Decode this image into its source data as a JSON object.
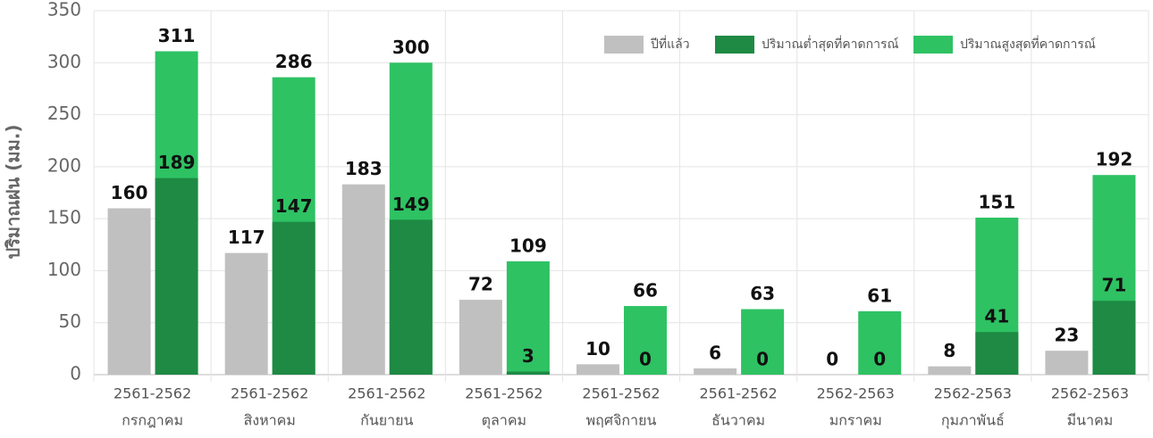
{
  "chart_data": {
    "type": "bar",
    "y_label": "ปริมาณฝน (มม.)",
    "categories": [
      [
        "2561-2562",
        "กรกฎาคม"
      ],
      [
        "2561-2562",
        "สิงหาคม"
      ],
      [
        "2561-2562",
        "กันยายน"
      ],
      [
        "2561-2562",
        "ตุลาคม"
      ],
      [
        "2561-2562",
        "พฤศจิกายน"
      ],
      [
        "2561-2562",
        "ธันวาคม"
      ],
      [
        "2562-2563",
        "มกราคม"
      ],
      [
        "2562-2563",
        "กุมภาพันธ์"
      ],
      [
        "2562-2563",
        "มีนาคม"
      ]
    ],
    "series": [
      {
        "name": "ปีที่แล้ว",
        "color": "#c0c0c0",
        "values": [
          160,
          117,
          183,
          72,
          10,
          6,
          0,
          8,
          23
        ]
      },
      {
        "name": "ปริมาณต่ำสุดที่คาดการณ์",
        "color": "#1e8a44",
        "values": [
          189,
          147,
          149,
          3,
          0,
          0,
          0,
          41,
          71
        ]
      },
      {
        "name": "ปริมาณสูงสุดที่คาดการณ์",
        "color": "#2ec263",
        "values": [
          311,
          286,
          300,
          109,
          66,
          63,
          61,
          151,
          192
        ]
      }
    ],
    "ylim": [
      0,
      350
    ],
    "yticks": [
      0,
      50,
      100,
      150,
      200,
      250,
      300,
      350
    ],
    "grid": true,
    "legend": "top-right"
  }
}
